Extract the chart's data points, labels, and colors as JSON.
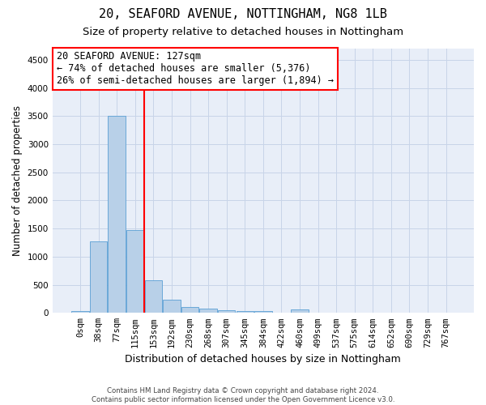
{
  "title1": "20, SEAFORD AVENUE, NOTTINGHAM, NG8 1LB",
  "title2": "Size of property relative to detached houses in Nottingham",
  "xlabel": "Distribution of detached houses by size in Nottingham",
  "ylabel": "Number of detached properties",
  "footer1": "Contains HM Land Registry data © Crown copyright and database right 2024.",
  "footer2": "Contains public sector information licensed under the Open Government Licence v3.0.",
  "bar_labels": [
    "0sqm",
    "38sqm",
    "77sqm",
    "115sqm",
    "153sqm",
    "192sqm",
    "230sqm",
    "268sqm",
    "307sqm",
    "345sqm",
    "384sqm",
    "422sqm",
    "460sqm",
    "499sqm",
    "537sqm",
    "575sqm",
    "614sqm",
    "652sqm",
    "690sqm",
    "729sqm",
    "767sqm"
  ],
  "bar_values": [
    35,
    1270,
    3500,
    1480,
    580,
    240,
    110,
    80,
    50,
    30,
    30,
    0,
    55,
    0,
    0,
    0,
    0,
    0,
    0,
    0,
    0
  ],
  "bar_color": "#b8d0e8",
  "bar_edge_color": "#5a9fd4",
  "vline_x": 3.5,
  "vline_color": "red",
  "annotation_text1": "20 SEAFORD AVENUE: 127sqm",
  "annotation_text2": "← 74% of detached houses are smaller (5,376)",
  "annotation_text3": "26% of semi-detached houses are larger (1,894) →",
  "annotation_box_color": "red",
  "background_color": "#e8eef8",
  "ylim": [
    0,
    4700
  ],
  "yticks": [
    0,
    500,
    1000,
    1500,
    2000,
    2500,
    3000,
    3500,
    4000,
    4500
  ],
  "grid_color": "#c8d4e8",
  "title1_fontsize": 11,
  "title2_fontsize": 9.5,
  "ylabel_fontsize": 8.5,
  "xlabel_fontsize": 9,
  "tick_fontsize": 7.5,
  "ann_fontsize": 8.5
}
